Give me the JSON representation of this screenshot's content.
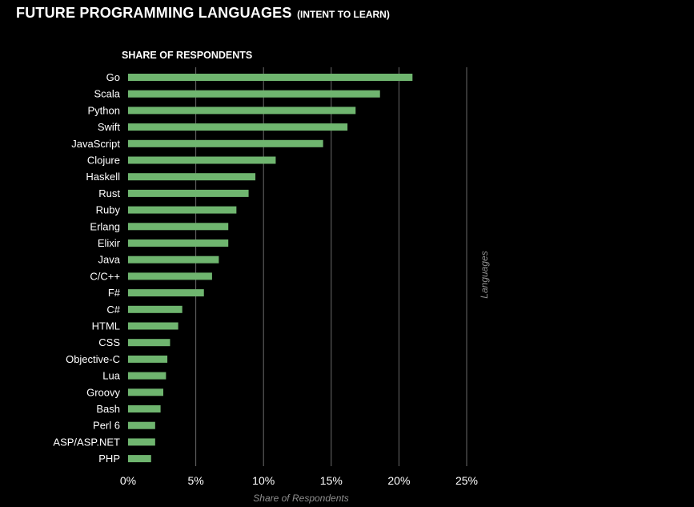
{
  "header": {
    "title": "FUTURE PROGRAMMING LANGUAGES",
    "subtitle": "(INTENT TO LEARN)",
    "section_label": "SHARE OF RESPONDENTS"
  },
  "colors": {
    "background": "#000000",
    "bar": "#6fb56f",
    "grid": "#6a6a6a",
    "text": "#ffffff",
    "muted": "#8e8e8e"
  },
  "chart_data": {
    "type": "bar",
    "orientation": "horizontal",
    "title": "FUTURE PROGRAMMING LANGUAGES",
    "subtitle": "(INTENT TO LEARN)",
    "xlabel": "Share of Respondents",
    "ylabel": "Languages",
    "xlim": [
      0,
      25
    ],
    "xticks": [
      "0%",
      "5%",
      "10%",
      "15%",
      "20%",
      "25%"
    ],
    "grid": true,
    "categories": [
      "Go",
      "Scala",
      "Python",
      "Swift",
      "JavaScript",
      "Clojure",
      "Haskell",
      "Rust",
      "Ruby",
      "Erlang",
      "Elixir",
      "Java",
      "C/C++",
      "F#",
      "C#",
      "HTML",
      "CSS",
      "Objective-C",
      "Lua",
      "Groovy",
      "Bash",
      "Perl 6",
      "ASP/ASP.NET",
      "PHP"
    ],
    "values": [
      21.0,
      18.6,
      16.8,
      16.2,
      14.4,
      10.9,
      9.4,
      8.9,
      8.0,
      7.4,
      7.4,
      6.7,
      6.2,
      5.6,
      4.0,
      3.7,
      3.1,
      2.9,
      2.8,
      2.6,
      2.4,
      2.0,
      2.0,
      1.7
    ]
  }
}
